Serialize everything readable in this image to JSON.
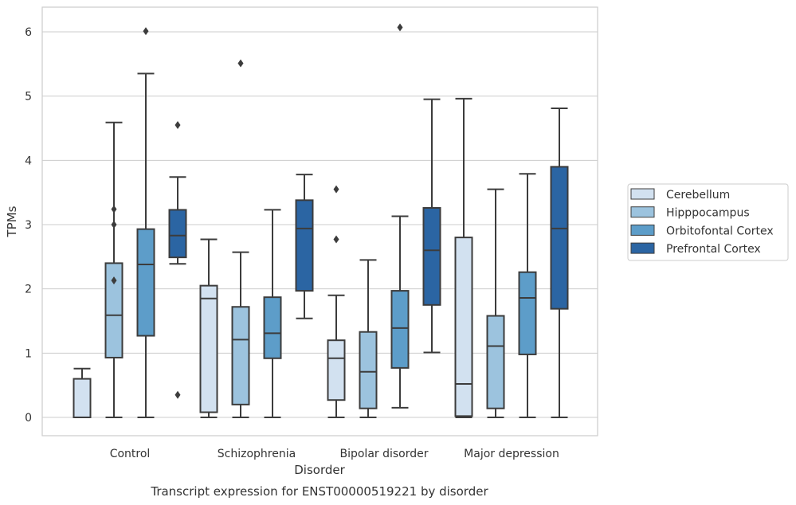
{
  "caption": "Transcript expression for ENST00000519221 by disorder",
  "chart_data": {
    "type": "box",
    "xlabel": "Disorder",
    "ylabel": "TPMs",
    "ylim": [
      -0.3,
      6.4
    ],
    "yticks": [
      0,
      1,
      2,
      3,
      4,
      5,
      6
    ],
    "grid": "horizontal",
    "legend_position": "right",
    "categories": [
      "Control",
      "Schizophrenia",
      "Bipolar disorder",
      "Major depression"
    ],
    "series": [
      {
        "name": "Cerebellum",
        "color": "#d2e1f0",
        "boxes": [
          {
            "whisker_low": 0,
            "q1": 0,
            "median": 0,
            "q3": 0.6,
            "whisker_high": 0.76,
            "outliers": []
          },
          {
            "whisker_low": 0,
            "q1": 0.08,
            "median": 1.85,
            "q3": 2.05,
            "whisker_high": 2.77,
            "outliers": []
          },
          {
            "whisker_low": 0,
            "q1": 0.27,
            "median": 0.92,
            "q3": 1.2,
            "whisker_high": 1.9,
            "outliers": [
              2.77,
              3.55
            ]
          },
          {
            "whisker_low": 0,
            "q1": 0.02,
            "median": 0.52,
            "q3": 2.8,
            "whisker_high": 4.96,
            "outliers": []
          }
        ]
      },
      {
        "name": "Hipppocampus",
        "color": "#9cc3de",
        "boxes": [
          {
            "whisker_low": 0,
            "q1": 0.93,
            "median": 1.59,
            "q3": 2.4,
            "whisker_high": 4.59,
            "outliers": [
              2.13,
              3.0,
              3.24
            ]
          },
          {
            "whisker_low": 0,
            "q1": 0.2,
            "median": 1.21,
            "q3": 1.72,
            "whisker_high": 2.57,
            "outliers": [
              5.51
            ]
          },
          {
            "whisker_low": 0,
            "q1": 0.14,
            "median": 0.71,
            "q3": 1.33,
            "whisker_high": 2.45,
            "outliers": []
          },
          {
            "whisker_low": 0,
            "q1": 0.14,
            "median": 1.11,
            "q3": 1.58,
            "whisker_high": 3.55,
            "outliers": []
          }
        ]
      },
      {
        "name": "Orbitofontal Cortex",
        "color": "#5d9dc9",
        "boxes": [
          {
            "whisker_low": 0,
            "q1": 1.27,
            "median": 2.38,
            "q3": 2.93,
            "whisker_high": 5.35,
            "outliers": [
              6.01
            ]
          },
          {
            "whisker_low": 0,
            "q1": 0.92,
            "median": 1.31,
            "q3": 1.87,
            "whisker_high": 3.23,
            "outliers": []
          },
          {
            "whisker_low": 0.15,
            "q1": 0.77,
            "median": 1.39,
            "q3": 1.97,
            "whisker_high": 3.13,
            "outliers": [
              6.07
            ]
          },
          {
            "whisker_low": 0,
            "q1": 0.98,
            "median": 1.86,
            "q3": 2.26,
            "whisker_high": 3.79,
            "outliers": []
          }
        ]
      },
      {
        "name": "Prefrontal Cortex",
        "color": "#2b65a3",
        "boxes": [
          {
            "whisker_low": 2.39,
            "q1": 2.49,
            "median": 2.83,
            "q3": 3.23,
            "whisker_high": 3.74,
            "outliers": [
              0.35,
              4.55
            ]
          },
          {
            "whisker_low": 1.54,
            "q1": 1.97,
            "median": 2.94,
            "q3": 3.38,
            "whisker_high": 3.78,
            "outliers": []
          },
          {
            "whisker_low": 1.01,
            "q1": 1.75,
            "median": 2.6,
            "q3": 3.26,
            "whisker_high": 4.95,
            "outliers": []
          },
          {
            "whisker_low": 0,
            "q1": 1.69,
            "median": 2.94,
            "q3": 3.9,
            "whisker_high": 4.81,
            "outliers": []
          }
        ]
      }
    ]
  }
}
